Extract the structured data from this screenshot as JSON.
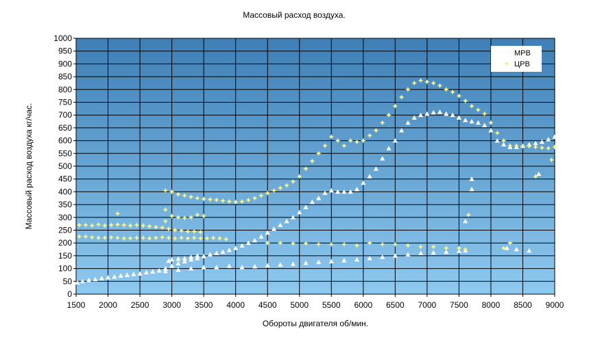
{
  "chart_data": {
    "type": "scatter",
    "title": "Массовый расход воздуха.",
    "xlabel": "Обороты двигателя об/мин.",
    "ylabel": "Массовый расход воздуха кг/час.",
    "xlim": [
      1500,
      9000
    ],
    "ylim": [
      0,
      1000
    ],
    "x_ticks": [
      "1500",
      "2000",
      "2500",
      "3000",
      "3500",
      "4000",
      "4500",
      "5000",
      "5500",
      "6000",
      "6500",
      "7000",
      "7500",
      "8000",
      "8500",
      "9000"
    ],
    "y_ticks": [
      "0",
      "50",
      "100",
      "150",
      "200",
      "250",
      "300",
      "350",
      "400",
      "450",
      "500",
      "550",
      "600",
      "650",
      "700",
      "750",
      "800",
      "850",
      "900",
      "950",
      "1000"
    ],
    "grid": true,
    "legend_position": "top-right",
    "background_gradient": [
      "#3e7fb6",
      "#8ec9f0"
    ],
    "series": [
      {
        "name": "МРВ",
        "marker": "triangle",
        "color": "#ffffff",
        "points": [
          [
            1520,
            45
          ],
          [
            1600,
            50
          ],
          [
            1700,
            55
          ],
          [
            1800,
            58
          ],
          [
            1900,
            62
          ],
          [
            2000,
            65
          ],
          [
            2100,
            68
          ],
          [
            2200,
            72
          ],
          [
            2300,
            75
          ],
          [
            2400,
            78
          ],
          [
            2500,
            80
          ],
          [
            2600,
            85
          ],
          [
            2700,
            88
          ],
          [
            2800,
            92
          ],
          [
            2900,
            100
          ],
          [
            3000,
            110
          ],
          [
            3100,
            120
          ],
          [
            3200,
            128
          ],
          [
            3300,
            135
          ],
          [
            3400,
            140
          ],
          [
            3500,
            148
          ],
          [
            3600,
            155
          ],
          [
            3700,
            160
          ],
          [
            3800,
            165
          ],
          [
            3900,
            172
          ],
          [
            4000,
            180
          ],
          [
            4100,
            190
          ],
          [
            4200,
            200
          ],
          [
            4300,
            210
          ],
          [
            4400,
            225
          ],
          [
            4500,
            240
          ],
          [
            4600,
            255
          ],
          [
            4700,
            270
          ],
          [
            4800,
            285
          ],
          [
            4900,
            300
          ],
          [
            5000,
            320
          ],
          [
            5100,
            340
          ],
          [
            5200,
            360
          ],
          [
            5300,
            375
          ],
          [
            5400,
            395
          ],
          [
            5500,
            405
          ],
          [
            5600,
            400
          ],
          [
            5700,
            400
          ],
          [
            5800,
            400
          ],
          [
            5900,
            410
          ],
          [
            6000,
            435
          ],
          [
            6100,
            460
          ],
          [
            6200,
            490
          ],
          [
            6300,
            530
          ],
          [
            6400,
            570
          ],
          [
            6500,
            600
          ],
          [
            6600,
            640
          ],
          [
            6700,
            670
          ],
          [
            6800,
            690
          ],
          [
            6900,
            700
          ],
          [
            7000,
            705
          ],
          [
            7100,
            710
          ],
          [
            7200,
            712
          ],
          [
            7300,
            705
          ],
          [
            7400,
            700
          ],
          [
            7500,
            690
          ],
          [
            7600,
            680
          ],
          [
            7700,
            675
          ],
          [
            7800,
            670
          ],
          [
            7900,
            660
          ],
          [
            8000,
            640
          ],
          [
            8100,
            600
          ],
          [
            8200,
            585
          ],
          [
            8300,
            575
          ],
          [
            8400,
            575
          ],
          [
            8500,
            580
          ],
          [
            8600,
            585
          ],
          [
            8700,
            590
          ],
          [
            8800,
            595
          ],
          [
            8900,
            605
          ],
          [
            9000,
            615
          ],
          [
            2950,
            130
          ],
          [
            3000,
            135
          ],
          [
            3100,
            138
          ],
          [
            3200,
            140
          ],
          [
            3300,
            145
          ],
          [
            3400,
            150
          ],
          [
            2900,
            90
          ],
          [
            3100,
            95
          ],
          [
            3300,
            100
          ],
          [
            3500,
            105
          ],
          [
            3700,
            105
          ],
          [
            3900,
            110
          ],
          [
            4100,
            105
          ],
          [
            4300,
            108
          ],
          [
            4500,
            112
          ],
          [
            4700,
            115
          ],
          [
            4900,
            118
          ],
          [
            5100,
            122
          ],
          [
            5300,
            125
          ],
          [
            5500,
            128
          ],
          [
            5700,
            132
          ],
          [
            5900,
            135
          ],
          [
            6100,
            140
          ],
          [
            6300,
            145
          ],
          [
            6500,
            150
          ],
          [
            6700,
            155
          ],
          [
            6900,
            160
          ],
          [
            7100,
            162
          ],
          [
            7300,
            165
          ],
          [
            7500,
            168
          ],
          [
            7600,
            170
          ],
          [
            7700,
            410
          ],
          [
            7700,
            450
          ],
          [
            7600,
            285
          ],
          [
            8250,
            180
          ],
          [
            8400,
            175
          ],
          [
            8750,
            470
          ],
          [
            8600,
            170
          ]
        ]
      },
      {
        "name": "ЦРВ",
        "marker": "star",
        "color": "#f7f48c",
        "points": [
          [
            1550,
            270
          ],
          [
            1650,
            270
          ],
          [
            1750,
            268
          ],
          [
            1850,
            272
          ],
          [
            1950,
            268
          ],
          [
            2050,
            270
          ],
          [
            2150,
            272
          ],
          [
            2250,
            270
          ],
          [
            2350,
            268
          ],
          [
            2450,
            270
          ],
          [
            2550,
            268
          ],
          [
            2650,
            265
          ],
          [
            2750,
            262
          ],
          [
            2850,
            260
          ],
          [
            2950,
            255
          ],
          [
            3050,
            250
          ],
          [
            3150,
            248
          ],
          [
            3250,
            245
          ],
          [
            3350,
            245
          ],
          [
            3450,
            242
          ],
          [
            1550,
            225
          ],
          [
            1650,
            225
          ],
          [
            1750,
            222
          ],
          [
            1850,
            220
          ],
          [
            1950,
            220
          ],
          [
            2050,
            222
          ],
          [
            2150,
            220
          ],
          [
            2250,
            218
          ],
          [
            2350,
            218
          ],
          [
            2450,
            220
          ],
          [
            2550,
            220
          ],
          [
            2650,
            218
          ],
          [
            2750,
            220
          ],
          [
            2850,
            222
          ],
          [
            2950,
            220
          ],
          [
            3050,
            218
          ],
          [
            3150,
            220
          ],
          [
            3250,
            218
          ],
          [
            3350,
            220
          ],
          [
            3450,
            218
          ],
          [
            3550,
            218
          ],
          [
            3650,
            220
          ],
          [
            3750,
            218
          ],
          [
            3850,
            215
          ],
          [
            2900,
            405
          ],
          [
            3000,
            400
          ],
          [
            3100,
            390
          ],
          [
            3200,
            385
          ],
          [
            3300,
            380
          ],
          [
            3400,
            375
          ],
          [
            3500,
            372
          ],
          [
            3600,
            370
          ],
          [
            3700,
            368
          ],
          [
            3800,
            365
          ],
          [
            3900,
            362
          ],
          [
            4000,
            360
          ],
          [
            4100,
            362
          ],
          [
            4200,
            368
          ],
          [
            4300,
            375
          ],
          [
            4400,
            385
          ],
          [
            4500,
            395
          ],
          [
            4600,
            405
          ],
          [
            4700,
            415
          ],
          [
            4800,
            425
          ],
          [
            4900,
            440
          ],
          [
            5000,
            460
          ],
          [
            5100,
            490
          ],
          [
            5200,
            520
          ],
          [
            5300,
            550
          ],
          [
            5400,
            580
          ],
          [
            5500,
            615
          ],
          [
            5600,
            600
          ],
          [
            5700,
            580
          ],
          [
            5800,
            600
          ],
          [
            5900,
            595
          ],
          [
            6000,
            600
          ],
          [
            6100,
            620
          ],
          [
            6200,
            640
          ],
          [
            6300,
            670
          ],
          [
            6400,
            700
          ],
          [
            6500,
            735
          ],
          [
            6600,
            770
          ],
          [
            6700,
            800
          ],
          [
            6800,
            825
          ],
          [
            6900,
            835
          ],
          [
            7000,
            830
          ],
          [
            7100,
            825
          ],
          [
            7200,
            815
          ],
          [
            7300,
            800
          ],
          [
            7400,
            790
          ],
          [
            7500,
            775
          ],
          [
            7600,
            755
          ],
          [
            7700,
            735
          ],
          [
            7800,
            720
          ],
          [
            7900,
            705
          ],
          [
            8000,
            670
          ],
          [
            8100,
            630
          ],
          [
            8200,
            600
          ],
          [
            8300,
            580
          ],
          [
            8400,
            580
          ],
          [
            8500,
            578
          ],
          [
            8600,
            578
          ],
          [
            8700,
            575
          ],
          [
            8800,
            572
          ],
          [
            8900,
            570
          ],
          [
            9000,
            575
          ],
          [
            2900,
            330
          ],
          [
            3000,
            305
          ],
          [
            3100,
            300
          ],
          [
            3200,
            298
          ],
          [
            3300,
            300
          ],
          [
            3400,
            310
          ],
          [
            3500,
            305
          ],
          [
            4500,
            200
          ],
          [
            4700,
            200
          ],
          [
            4900,
            198
          ],
          [
            5100,
            198
          ],
          [
            5300,
            195
          ],
          [
            5500,
            195
          ],
          [
            5700,
            195
          ],
          [
            5900,
            190
          ],
          [
            6100,
            200
          ],
          [
            6300,
            195
          ],
          [
            6500,
            195
          ],
          [
            6700,
            190
          ],
          [
            6900,
            185
          ],
          [
            7100,
            185
          ],
          [
            7300,
            180
          ],
          [
            7500,
            180
          ],
          [
            7600,
            175
          ],
          [
            7650,
            310
          ],
          [
            8200,
            180
          ],
          [
            8300,
            200
          ],
          [
            8700,
            460
          ],
          [
            8950,
            525
          ],
          [
            2150,
            315
          ],
          [
            2900,
            285
          ]
        ]
      }
    ]
  }
}
